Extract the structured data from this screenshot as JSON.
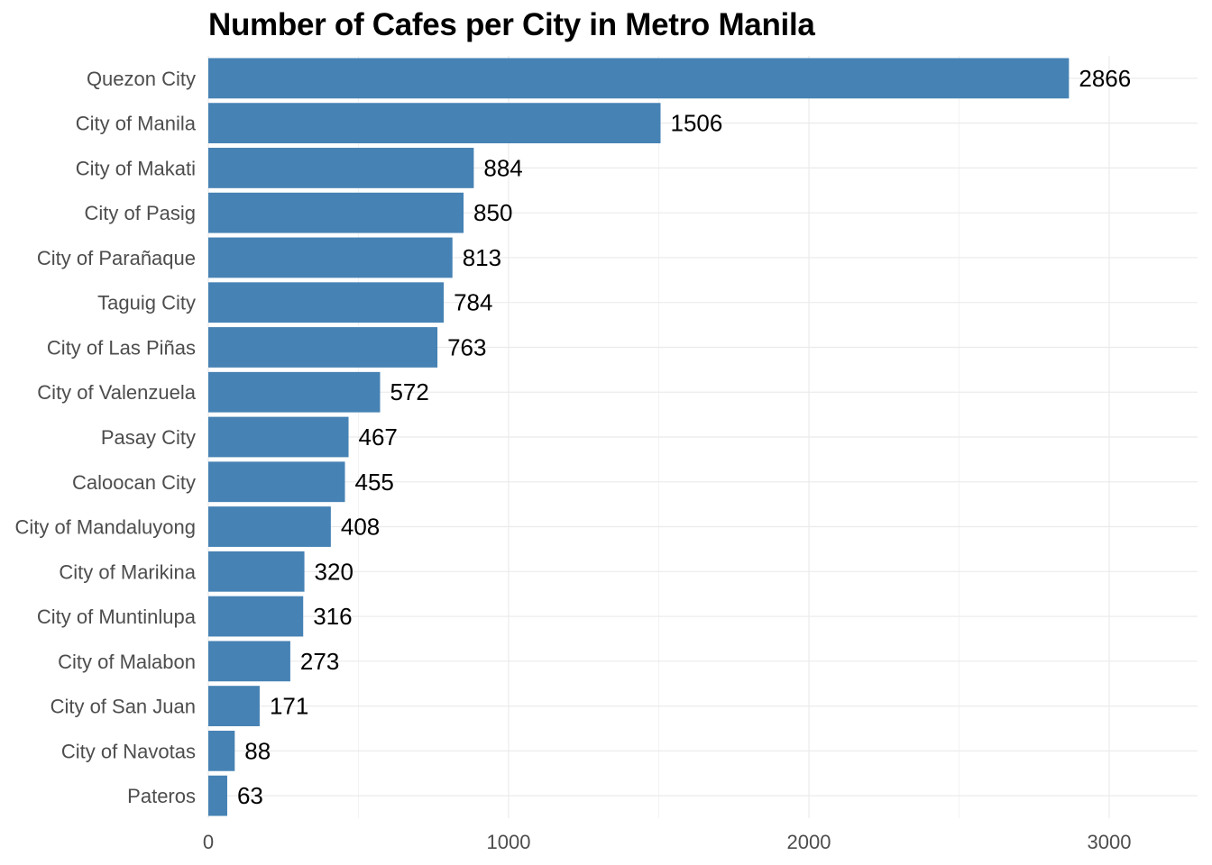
{
  "chart_data": {
    "type": "bar",
    "orientation": "horizontal",
    "title": "Number of Cafes per City in Metro Manila",
    "xlabel": "",
    "ylabel": "",
    "categories": [
      "Quezon City",
      "City of Manila",
      "City of Makati",
      "City of Pasig",
      "City of Parañaque",
      "Taguig City",
      "City of Las Piñas",
      "City of Valenzuela",
      "Pasay City",
      "Caloocan City",
      "City of Mandaluyong",
      "City of Marikina",
      "City of Muntinlupa",
      "City of Malabon",
      "City of San Juan",
      "City of Navotas",
      "Pateros"
    ],
    "values": [
      2866,
      1506,
      884,
      850,
      813,
      784,
      763,
      572,
      467,
      455,
      408,
      320,
      316,
      273,
      171,
      88,
      63
    ],
    "xlim": [
      0,
      3290
    ],
    "xticks": [
      0,
      1000,
      2000,
      3000
    ],
    "xtick_labels": [
      "0",
      "1000",
      "2000",
      "3000"
    ],
    "grid": true,
    "bar_color": "#4682b4",
    "legend": "none"
  }
}
